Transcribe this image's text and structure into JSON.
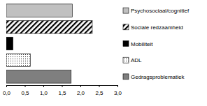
{
  "chart_data": {
    "type": "bar",
    "orientation": "horizontal",
    "categories": [
      "Psychosociaal/cognitief",
      "Sociale redzaamheid",
      "Mobiliteit",
      "ADL",
      "Gedragsproblematiek"
    ],
    "values": [
      1.78,
      2.32,
      0.18,
      0.65,
      1.75
    ],
    "colors": [
      "#c0c0c0",
      "#ffffff",
      "#000000",
      "#ffffff",
      "#7f7f7f"
    ],
    "xlim": [
      0,
      3
    ],
    "xticks": [
      {
        "value": 0,
        "label": "0,0"
      },
      {
        "value": 0.5,
        "label": "0,5"
      },
      {
        "value": 1,
        "label": "1,0"
      },
      {
        "value": 1.5,
        "label": "1,5"
      },
      {
        "value": 2,
        "label": "2,0"
      },
      {
        "value": 2.5,
        "label": "2,5"
      },
      {
        "value": 3,
        "label": "3,0"
      }
    ],
    "legend": "right",
    "tick_labels": "x"
  }
}
